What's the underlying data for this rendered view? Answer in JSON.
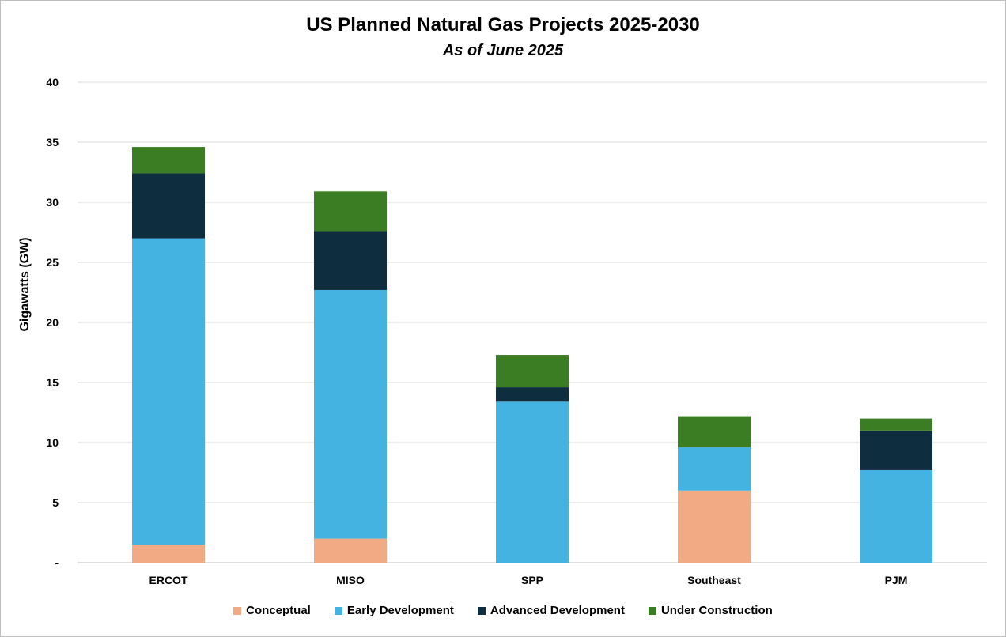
{
  "chart_data": {
    "type": "bar",
    "stacked": true,
    "title": "US Planned Natural Gas Projects 2025-2030",
    "subtitle": "As of June 2025",
    "xlabel": "",
    "ylabel": "Gigawatts (GW)",
    "ylim": [
      0,
      40
    ],
    "yticks": [
      0,
      5,
      10,
      15,
      20,
      25,
      30,
      35,
      40
    ],
    "ytick_labels": [
      "-",
      "5",
      "10",
      "15",
      "20",
      "25",
      "30",
      "35",
      "40"
    ],
    "grid": true,
    "legend_position": "bottom",
    "categories": [
      "ERCOT",
      "MISO",
      "SPP",
      "Southeast",
      "PJM"
    ],
    "series": [
      {
        "name": "Conceptual",
        "color": "#F2AA84",
        "values": [
          1.5,
          2.0,
          0.0,
          6.0,
          0.0
        ]
      },
      {
        "name": "Early Development",
        "color": "#45B3E1",
        "values": [
          25.5,
          20.7,
          13.4,
          3.6,
          7.7
        ]
      },
      {
        "name": "Advanced Development",
        "color": "#0E2E40",
        "values": [
          5.4,
          4.9,
          1.2,
          0.0,
          3.3
        ]
      },
      {
        "name": "Under Construction",
        "color": "#3B7D23",
        "values": [
          2.2,
          3.3,
          2.7,
          2.6,
          1.0
        ]
      }
    ]
  }
}
